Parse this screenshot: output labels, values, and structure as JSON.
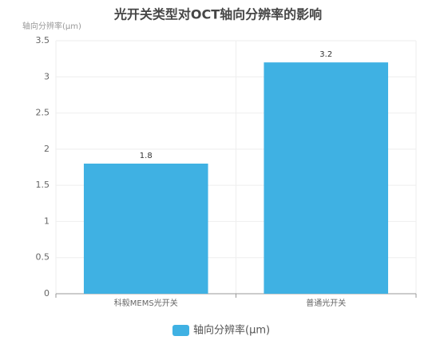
{
  "chart_data": {
    "type": "bar",
    "title": "光开关类型对OCT轴向分辨率的影响",
    "y_label": "轴向分辨率(μm)",
    "categories": [
      "科毅MEMS光开关",
      "普通光开关"
    ],
    "series": [
      {
        "name": "轴向分辨率(μm)",
        "color": "#3fb1e3",
        "values": [
          1.8,
          3.2
        ]
      }
    ],
    "ylim": [
      0,
      3.5
    ],
    "yticks": [
      0,
      0.5,
      1,
      1.5,
      2,
      2.5,
      3,
      3.5
    ],
    "grid": true,
    "legend": "bottom"
  }
}
